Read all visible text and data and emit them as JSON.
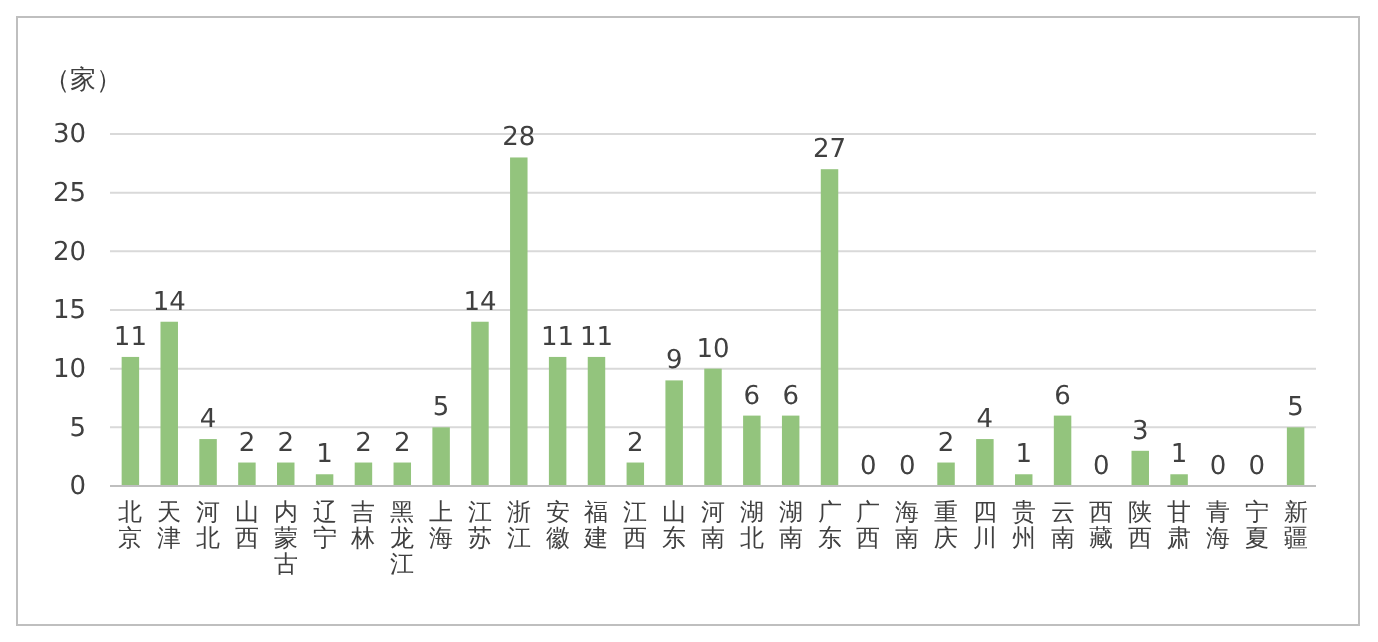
{
  "chart_data": {
    "type": "bar",
    "ylabel": "（家）",
    "categories": [
      "北京",
      "天津",
      "河北",
      "山西",
      "内蒙古",
      "辽宁",
      "吉林",
      "黑龙江",
      "上海",
      "江苏",
      "浙江",
      "安徽",
      "福建",
      "江西",
      "山东",
      "河南",
      "湖北",
      "湖南",
      "广东",
      "广西",
      "海南",
      "重庆",
      "四川",
      "贵州",
      "云南",
      "西藏",
      "陕西",
      "甘肃",
      "青海",
      "宁夏",
      "新疆"
    ],
    "values": [
      11,
      14,
      4,
      2,
      2,
      1,
      2,
      2,
      5,
      14,
      28,
      11,
      11,
      2,
      9,
      10,
      6,
      6,
      27,
      0,
      0,
      2,
      4,
      1,
      6,
      0,
      3,
      1,
      0,
      0,
      5
    ],
    "color": "#93c47d",
    "ylim": [
      0,
      30
    ],
    "yticks": [
      0,
      5,
      10,
      15,
      20,
      25,
      30
    ],
    "grid": "y",
    "data_labels": true
  }
}
